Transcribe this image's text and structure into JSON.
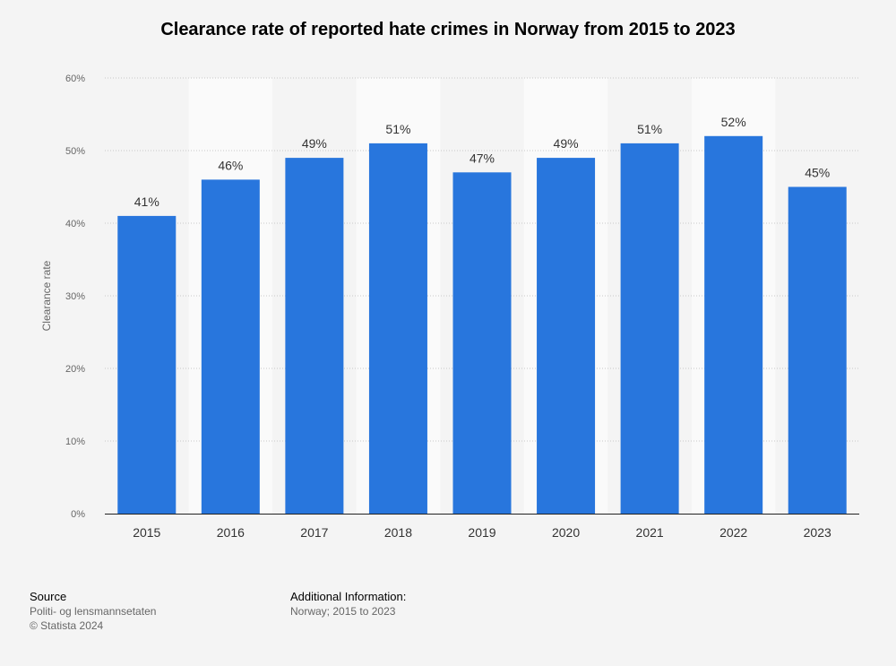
{
  "title": "Clearance rate of reported hate crimes in Norway from 2015 to 2023",
  "chart_data": {
    "type": "bar",
    "title": "Clearance rate of reported hate crimes in Norway from 2015 to 2023",
    "xlabel": "",
    "ylabel": "Clearance rate",
    "categories": [
      "2015",
      "2016",
      "2017",
      "2018",
      "2019",
      "2020",
      "2021",
      "2022",
      "2023"
    ],
    "values": [
      41,
      46,
      49,
      51,
      47,
      49,
      51,
      52,
      45
    ],
    "data_labels": [
      "41%",
      "46%",
      "49%",
      "51%",
      "47%",
      "49%",
      "51%",
      "52%",
      "45%"
    ],
    "ylim": [
      0,
      60
    ],
    "yticks": [
      0,
      10,
      20,
      30,
      40,
      50,
      60
    ],
    "ytick_labels": [
      "0%",
      "10%",
      "20%",
      "30%",
      "40%",
      "50%",
      "60%"
    ],
    "grid": true,
    "legend": "none",
    "bar_color": "#2876dd"
  },
  "footer": {
    "source_heading": "Source",
    "source_lines": [
      "Politi- og lensmannsetaten",
      "© Statista 2024"
    ],
    "info_heading": "Additional Information:",
    "info_lines": [
      "Norway; 2015 to 2023"
    ]
  }
}
